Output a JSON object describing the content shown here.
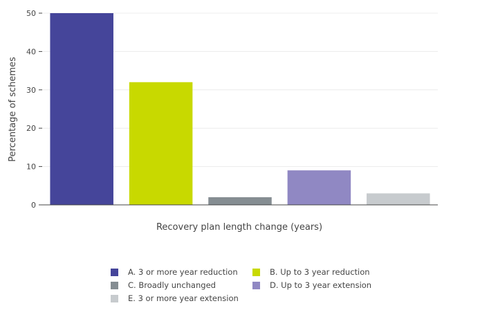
{
  "chart_data": {
    "type": "bar",
    "categories": [
      "A. 3 or more year reduction",
      "B. Up to 3 year reduction",
      "C. Broadly unchanged",
      "D. Up to 3 year extension",
      "E. 3 or more year extension"
    ],
    "values": [
      50,
      32,
      2,
      9,
      3
    ],
    "colors": [
      "#45459a",
      "#c8d900",
      "#858d92",
      "#9088c3",
      "#c7cbce"
    ],
    "xlabel": "Recovery plan length change (years)",
    "ylabel": "Percentage of schemes",
    "ylim": [
      0,
      50
    ],
    "yticks": [
      0,
      10,
      20,
      30,
      40,
      50
    ],
    "grid": true,
    "legend_position": "bottom"
  }
}
